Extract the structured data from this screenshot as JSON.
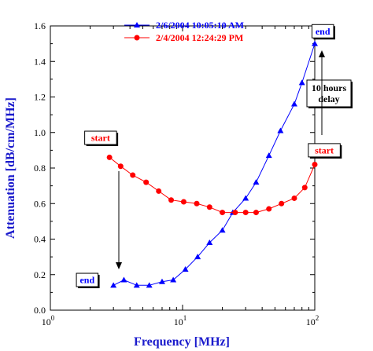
{
  "chart_data": {
    "type": "line",
    "xlabel": "Frequency [MHz]",
    "ylabel": "Attenuation [dB/cm/MHz]",
    "xscale": "log",
    "xlim": [
      1,
      100
    ],
    "ylim": [
      0,
      1.6
    ],
    "x_ticks": [
      {
        "value": 1,
        "base": "10",
        "exp": "0"
      },
      {
        "value": 10,
        "base": "10",
        "exp": "1"
      },
      {
        "value": 100,
        "base": "10",
        "exp": "2"
      }
    ],
    "y_ticks": [
      "0.0",
      "0.2",
      "0.4",
      "0.6",
      "0.8",
      "1.0",
      "1.2",
      "1.4",
      "1.6"
    ],
    "legend_position": "top-center",
    "series": [
      {
        "name": "2/6/2004 10:05:10 AM",
        "color": "#0000ff",
        "marker": "triangle",
        "x": [
          3.0,
          3.6,
          4.5,
          5.6,
          7.0,
          8.5,
          10.5,
          13.0,
          16.0,
          20.0,
          24.0,
          30.0,
          36.0,
          45.0,
          55.0,
          70.0,
          80.0,
          100.0
        ],
        "y": [
          0.14,
          0.17,
          0.14,
          0.14,
          0.16,
          0.17,
          0.23,
          0.3,
          0.38,
          0.45,
          0.55,
          0.63,
          0.72,
          0.87,
          1.01,
          1.16,
          1.28,
          1.5
        ]
      },
      {
        "name": "2/4/2004 12:24:29 PM",
        "color": "#ff0000",
        "marker": "circle",
        "x": [
          2.8,
          3.4,
          4.2,
          5.3,
          6.6,
          8.2,
          10.2,
          12.8,
          16.0,
          20.0,
          25.0,
          30.0,
          36.0,
          45.0,
          56.0,
          70.0,
          84.0,
          100.0
        ],
        "y": [
          0.86,
          0.81,
          0.76,
          0.72,
          0.67,
          0.62,
          0.61,
          0.6,
          0.58,
          0.55,
          0.55,
          0.55,
          0.55,
          0.57,
          0.6,
          0.63,
          0.69,
          0.82
        ]
      }
    ],
    "annotations": [
      {
        "id": "red-start",
        "text": "start",
        "color": "#ff0000",
        "x": 2.4,
        "y": 0.97
      },
      {
        "id": "red-end",
        "text": "end",
        "color": "#0000ff",
        "x": 1.9,
        "y": 0.17
      },
      {
        "id": "blue-end",
        "text": "end",
        "color": "#0000ff",
        "x": 115,
        "y": 1.57
      },
      {
        "id": "blue-start",
        "text": "start",
        "color": "#ff0000",
        "x": 118,
        "y": 0.9
      },
      {
        "id": "delay",
        "text_lines": [
          "10 hours",
          "delay"
        ],
        "color": "#000000",
        "x": 128,
        "y": 1.22
      }
    ]
  }
}
